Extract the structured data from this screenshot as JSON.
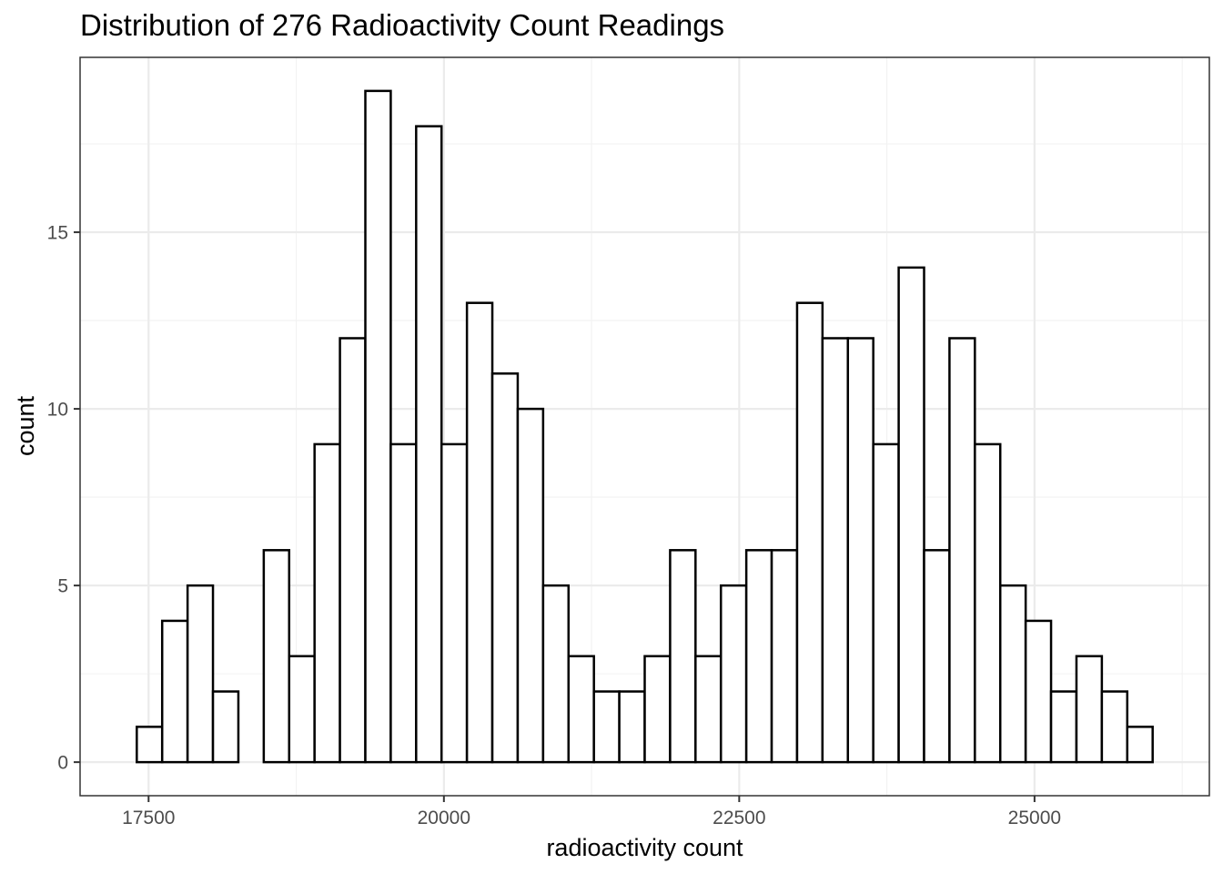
{
  "chart_data": {
    "type": "bar",
    "subtype": "histogram",
    "title": "Distribution of 276 Radioactivity Count Readings",
    "xlabel": "radioactivity count",
    "ylabel": "count",
    "bin_width": 215,
    "bins_start": 17400,
    "values": [
      1,
      4,
      5,
      2,
      0,
      6,
      3,
      9,
      12,
      19,
      9,
      18,
      9,
      13,
      11,
      10,
      5,
      3,
      2,
      2,
      3,
      6,
      3,
      5,
      6,
      6,
      13,
      12,
      12,
      9,
      14,
      6,
      12,
      9,
      5,
      4,
      2,
      3,
      2,
      1
    ],
    "xlim": [
      16920,
      26480
    ],
    "ylim": [
      -0.95,
      19.95
    ],
    "x_ticks": [
      17500,
      20000,
      22500,
      25000
    ],
    "x_tick_labels": [
      "17500",
      "20000",
      "22500",
      "25000"
    ],
    "y_ticks": [
      0,
      5,
      10,
      15
    ],
    "y_tick_labels": [
      "0",
      "5",
      "10",
      "15"
    ],
    "x_minor_ticks": [
      18750,
      21250,
      23750,
      26250
    ],
    "y_minor_ticks": [
      2.5,
      7.5,
      12.5,
      17.5
    ],
    "grid": true,
    "legend": "none",
    "colors": {
      "bar_fill": "#ffffff",
      "bar_outline": "#000000",
      "grid": "#ebebeb",
      "panel_border": "#333333"
    }
  }
}
